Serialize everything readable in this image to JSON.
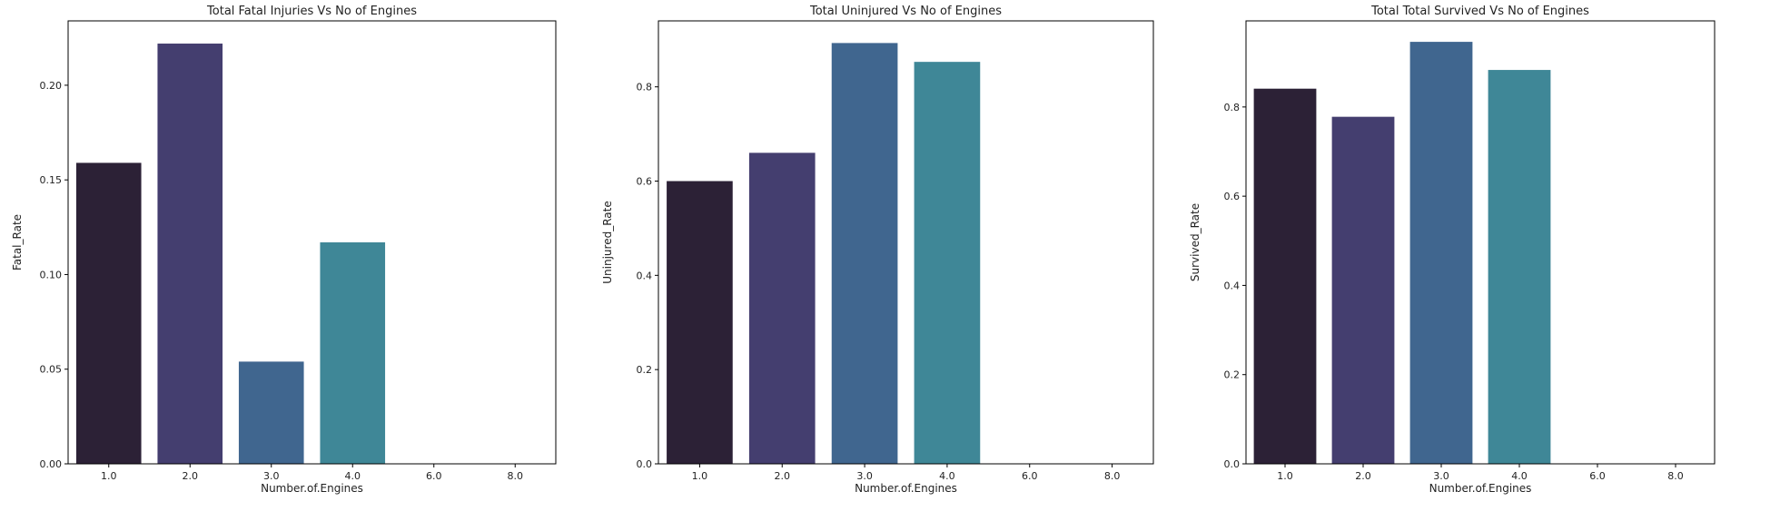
{
  "chart_data": [
    {
      "type": "bar",
      "title": "Total Fatal Injuries Vs No of Engines",
      "xlabel": "Number.of.Engines",
      "ylabel": "Fatal_Rate",
      "categories": [
        "1.0",
        "2.0",
        "3.0",
        "4.0",
        "6.0",
        "8.0"
      ],
      "values": [
        0.159,
        0.222,
        0.054,
        0.117,
        0,
        0
      ],
      "ylim": [
        0,
        0.234
      ],
      "yticks": [
        0.0,
        0.05,
        0.1,
        0.15,
        0.2
      ],
      "ytick_labels": [
        "0.00",
        "0.05",
        "0.10",
        "0.15",
        "0.20"
      ],
      "grid": false,
      "colors": [
        "#2c2136",
        "#443e6f",
        "#40668f",
        "#3f8797",
        "#46a495",
        "#5ec08d"
      ]
    },
    {
      "type": "bar",
      "title": "Total Uninjured Vs No of Engines",
      "xlabel": "Number.of.Engines",
      "ylabel": "Uninjured_Rate",
      "categories": [
        "1.0",
        "2.0",
        "3.0",
        "4.0",
        "6.0",
        "8.0"
      ],
      "values": [
        0.6,
        0.66,
        0.893,
        0.853,
        0,
        0
      ],
      "ylim": [
        0,
        0.94
      ],
      "yticks": [
        0.0,
        0.2,
        0.4,
        0.6,
        0.8
      ],
      "ytick_labels": [
        "0.0",
        "0.2",
        "0.4",
        "0.6",
        "0.8"
      ],
      "grid": false,
      "colors": [
        "#2c2136",
        "#443e6f",
        "#40668f",
        "#3f8797",
        "#46a495",
        "#5ec08d"
      ]
    },
    {
      "type": "bar",
      "title": "Total Total Survived Vs No of Engines",
      "xlabel": "Number.of.Engines",
      "ylabel": "Survived_Rate",
      "categories": [
        "1.0",
        "2.0",
        "3.0",
        "4.0",
        "6.0",
        "8.0"
      ],
      "values": [
        0.841,
        0.778,
        0.946,
        0.883,
        0,
        0
      ],
      "ylim": [
        0,
        0.993
      ],
      "yticks": [
        0.0,
        0.2,
        0.4,
        0.6,
        0.8
      ],
      "ytick_labels": [
        "0.0",
        "0.2",
        "0.4",
        "0.6",
        "0.8"
      ],
      "grid": false,
      "colors": [
        "#2c2136",
        "#443e6f",
        "#40668f",
        "#3f8797",
        "#46a495",
        "#5ec08d"
      ]
    }
  ]
}
